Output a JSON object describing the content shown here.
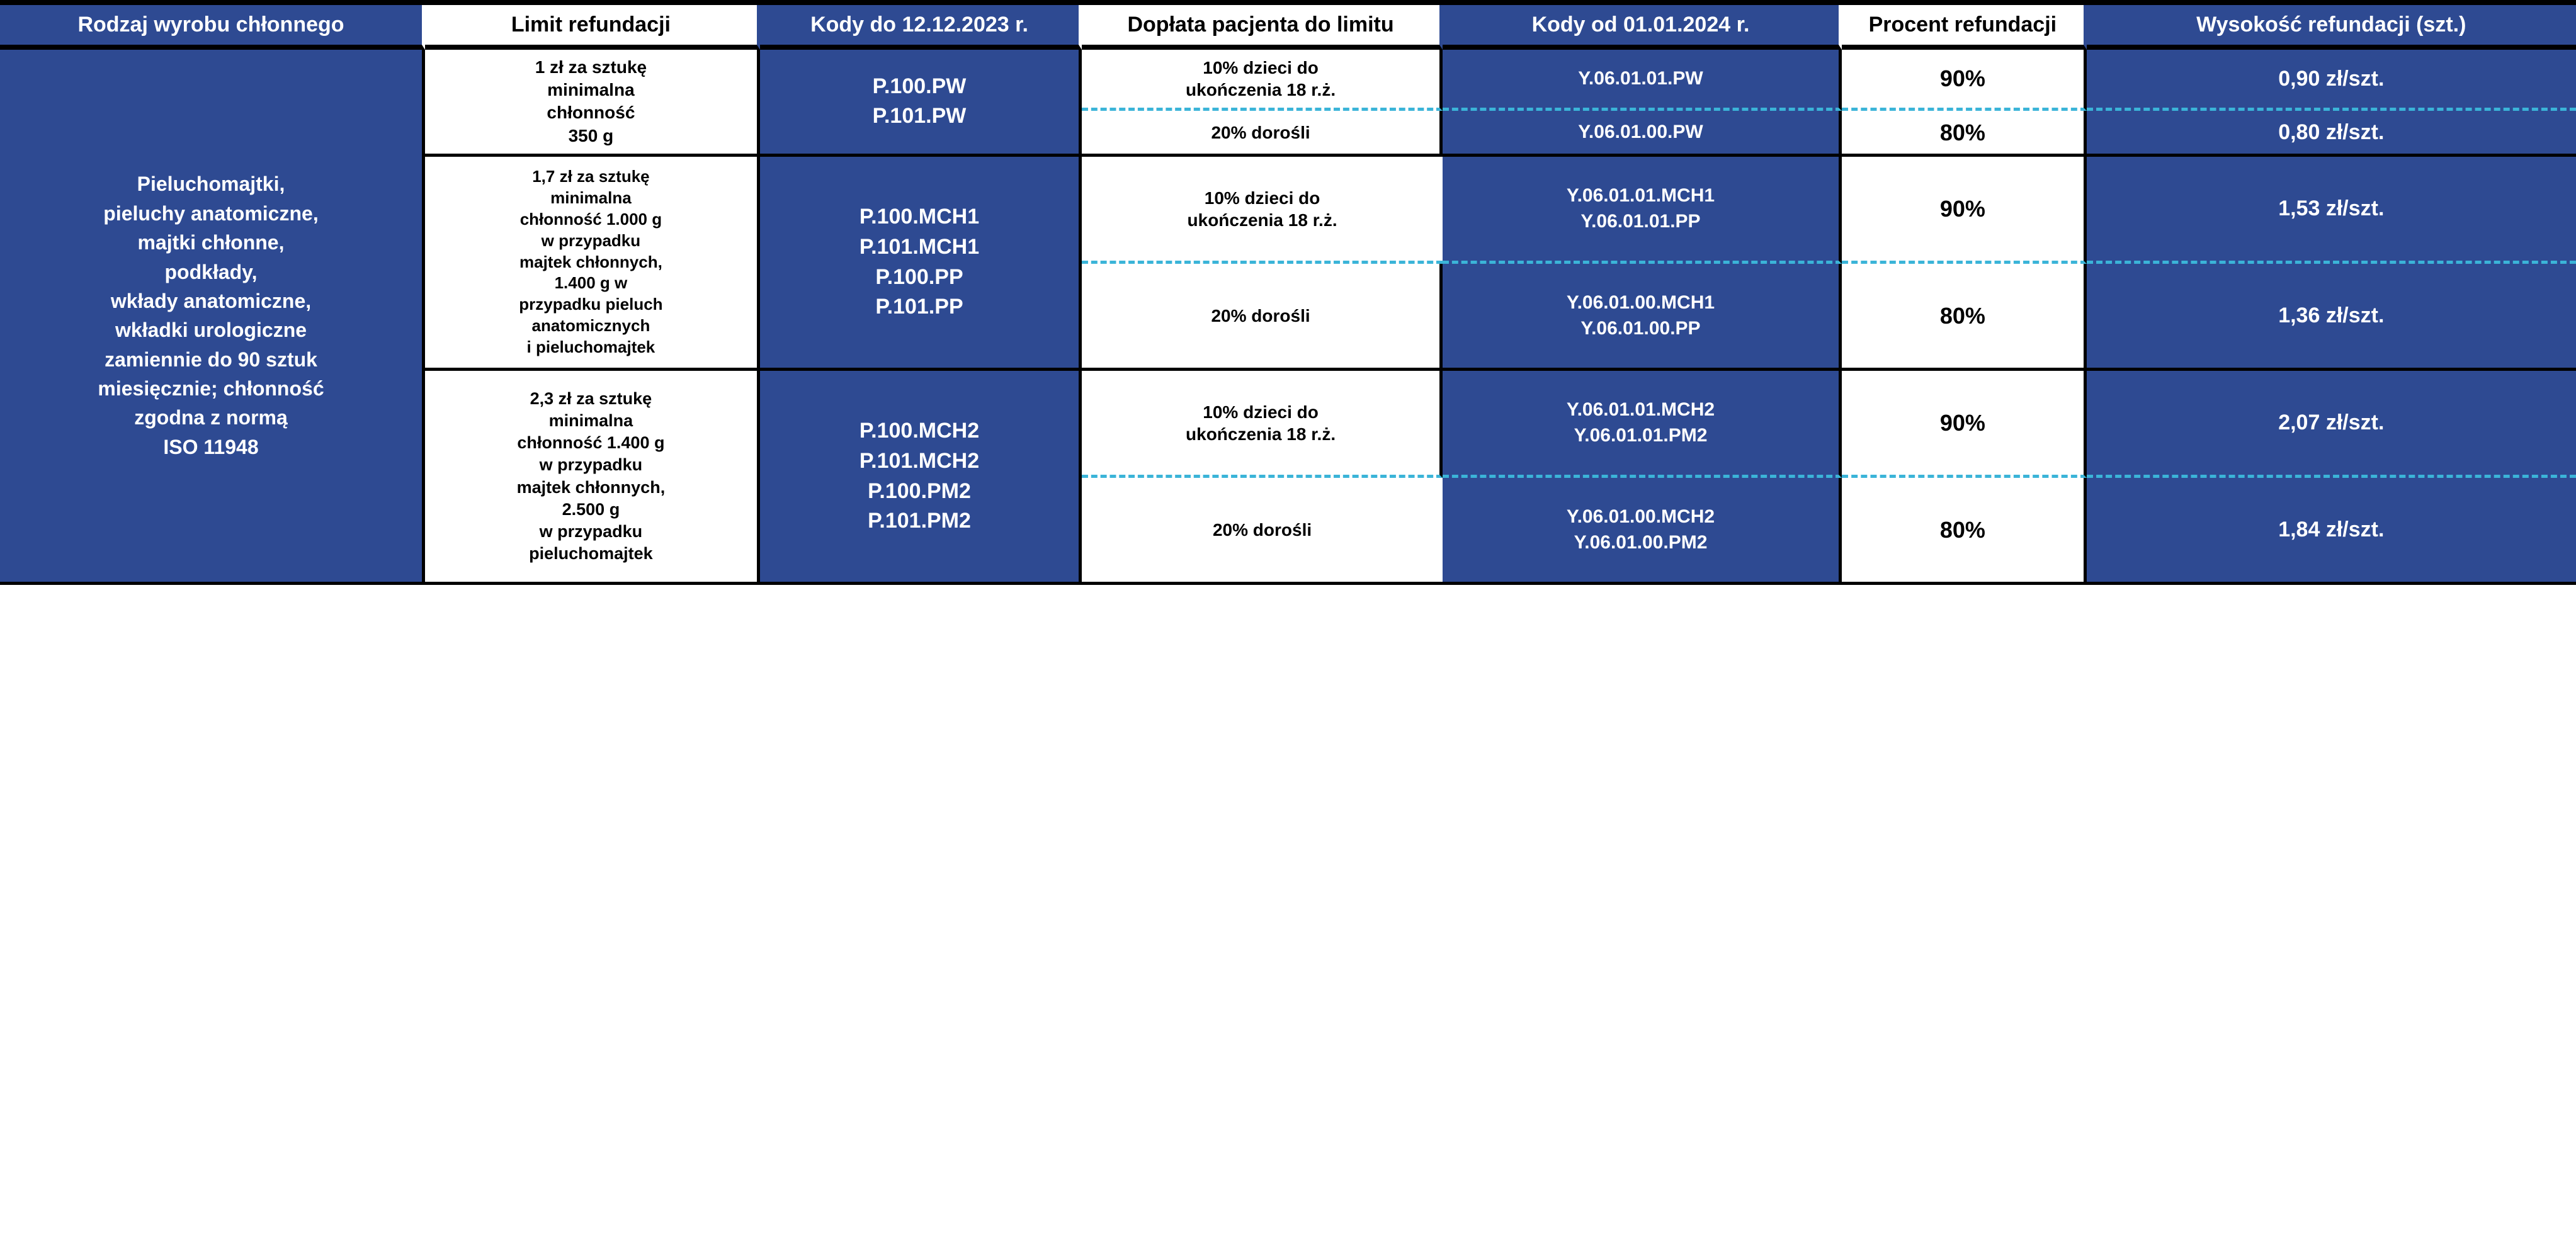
{
  "colors": {
    "blue_bg": "#2e4a92",
    "white_bg": "#ffffff",
    "text_white": "#ffffff",
    "text_black": "#000000",
    "border_black": "#000000",
    "dashed": "#3bb4d8"
  },
  "headers": {
    "c1": "Rodzaj wyrobu chłonnego",
    "c2": "Limit refundacji",
    "c3": "Kody do 12.12.2023 r.",
    "c4": "Dopłata pacjenta do limitu",
    "c5": "Kody od 01.01.2024 r.",
    "c6": "Procent refundacji",
    "c7": "Wysokość refundacji (szt.)"
  },
  "product": "Pieluchomajtki,\npieluchy anatomiczne,\nmajtki chłonne,\npodkłady,\nwkłady anatomiczne,\nwkładki urologiczne\nzamiennie do 90 sztuk\nmiesięcznie; chłonność\nzgodna z normą\nISO 11948",
  "blocks": [
    {
      "limit": "1 zł za sztukę\nminimalna\nchłonność\n350 g",
      "old_codes": "P.100.PW\nP.101.PW",
      "rows": [
        {
          "pay": "10% dzieci do\nukończenia 18 r.ż.",
          "new_codes": "Y.06.01.01.PW",
          "pct": "90%",
          "amt": "0,90 zł/szt."
        },
        {
          "pay": "20% dorośli",
          "new_codes": "Y.06.01.00.PW",
          "pct": "80%",
          "amt": "0,80 zł/szt."
        }
      ]
    },
    {
      "limit": "1,7 zł za sztukę\nminimalna\nchłonność 1.000 g\nw przypadku\nmajtek chłonnych,\n1.400 g w\nprzypadku pieluch\nanatomicznych\ni pieluchomajtek",
      "old_codes": "P.100.MCH1\nP.101.MCH1\nP.100.PP\nP.101.PP",
      "rows": [
        {
          "pay": "10% dzieci do\nukończenia 18 r.ż.",
          "new_codes": "Y.06.01.01.MCH1\nY.06.01.01.PP",
          "pct": "90%",
          "amt": "1,53 zł/szt."
        },
        {
          "pay": "20% dorośli",
          "new_codes": "Y.06.01.00.MCH1\nY.06.01.00.PP",
          "pct": "80%",
          "amt": "1,36 zł/szt."
        }
      ]
    },
    {
      "limit": "2,3 zł za sztukę\nminimalna\nchłonność 1.400 g\nw przypadku\nmajtek chłonnych,\n2.500 g\nw przypadku\npieluchomajtek",
      "old_codes": "P.100.MCH2\nP.101.MCH2\nP.100.PM2\nP.101.PM2",
      "rows": [
        {
          "pay": "10% dzieci do\nukończenia 18 r.ż.",
          "new_codes": "Y.06.01.01.MCH2\nY.06.01.01.PM2",
          "pct": "90%",
          "amt": "2,07 zł/szt."
        },
        {
          "pay": "20% dorośli",
          "new_codes": "Y.06.01.00.MCH2\nY.06.01.00.PM2",
          "pct": "80%",
          "amt": "1,84 zł/szt."
        }
      ]
    }
  ]
}
